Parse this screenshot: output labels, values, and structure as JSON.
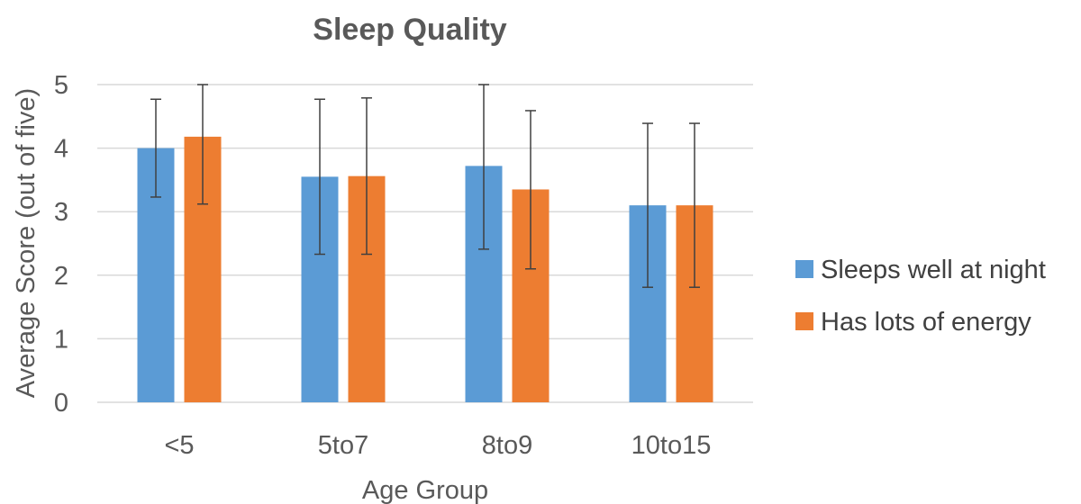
{
  "chart_data": {
    "type": "bar",
    "title": "Sleep Quality",
    "xlabel": "Age Group",
    "ylabel": "Average Score (out of five)",
    "categories": [
      "<5",
      "5to7",
      "8to9",
      "10to15"
    ],
    "ylim": [
      0,
      5
    ],
    "yticks": [
      0,
      1,
      2,
      3,
      4,
      5
    ],
    "grid": true,
    "legend_position": "right",
    "series": [
      {
        "name": "Sleeps well at night",
        "color": "#5b9bd5",
        "values": [
          4.0,
          3.55,
          3.72,
          3.1
        ],
        "error_low": [
          3.23,
          2.33,
          2.41,
          1.81
        ],
        "error_high": [
          4.77,
          4.77,
          5.0,
          4.39
        ]
      },
      {
        "name": "Has lots of energy",
        "color": "#ed7d31",
        "values": [
          4.18,
          3.56,
          3.35,
          3.1
        ],
        "error_low": [
          3.12,
          2.33,
          2.1,
          1.81
        ],
        "error_high": [
          5.0,
          4.79,
          4.59,
          4.39
        ]
      }
    ]
  }
}
